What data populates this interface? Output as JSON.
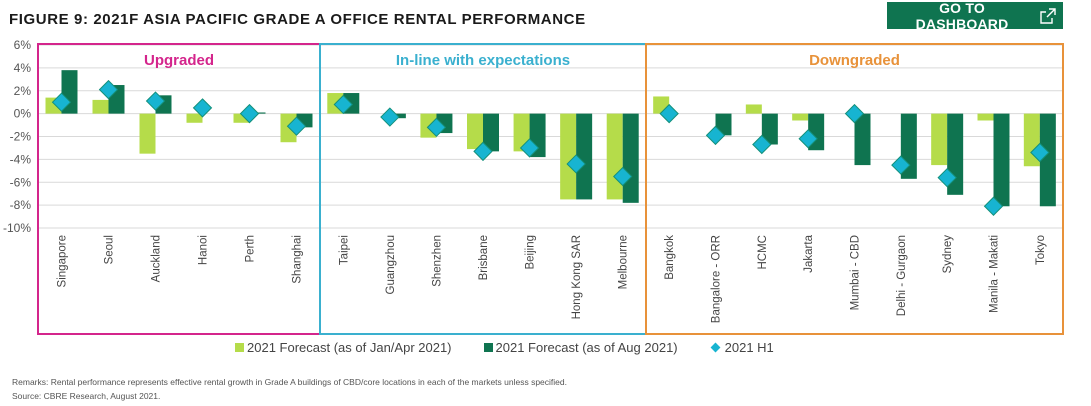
{
  "header": {
    "title": "FIGURE 9: 2021F ASIA PACIFIC GRADE A OFFICE RENTAL PERFORMANCE",
    "dashboard_button": "GO TO DASHBOARD",
    "dashboard_icon": "external-link-icon"
  },
  "colors": {
    "forecast_jan_apr": "#b5dc4a",
    "forecast_aug": "#0f7450",
    "h1": "#17b4d1",
    "h1_border": "#13907a",
    "upgraded": "#d4258c",
    "inline": "#3ab0cf",
    "downgraded": "#e8923a",
    "button_bg": "#0f7450"
  },
  "chart_data": {
    "type": "bar",
    "title": "FIGURE 9: 2021F ASIA PACIFIC GRADE A OFFICE RENTAL PERFORMANCE",
    "xlabel": "",
    "ylabel": "",
    "ylim": [
      -10,
      6
    ],
    "yticks": [
      "6%",
      "4%",
      "2%",
      "0%",
      "-2%",
      "-4%",
      "-6%",
      "-8%",
      "-10%"
    ],
    "ytick_values": [
      6,
      4,
      2,
      0,
      -2,
      -4,
      -6,
      -8,
      -10
    ],
    "grid": true,
    "legend_position": "bottom",
    "groups": [
      {
        "name": "Upgraded",
        "categories": [
          "Singapore",
          "Seoul",
          "Auckland",
          "Hanoi",
          "Perth",
          "Shanghai"
        ]
      },
      {
        "name": "In-line with expectations",
        "categories": [
          "Taipei",
          "Guangzhou",
          "Shenzhen",
          "Brisbane",
          "Beijing",
          "Hong Kong SAR",
          "Melbourne"
        ]
      },
      {
        "name": "Downgraded",
        "categories": [
          "Bangkok",
          "Bangalore - ORR",
          "HCMC",
          "Jakarta",
          "Mumbai - CBD",
          "Delhi - Gurgaon",
          "Sydney",
          "Manila - Makati",
          "Tokyo"
        ]
      }
    ],
    "categories": [
      "Singapore",
      "Seoul",
      "Auckland",
      "Hanoi",
      "Perth",
      "Shanghai",
      "Taipei",
      "Guangzhou",
      "Shenzhen",
      "Brisbane",
      "Beijing",
      "Hong Kong SAR",
      "Melbourne",
      "Bangkok",
      "Bangalore - ORR",
      "HCMC",
      "Jakarta",
      "Mumbai - CBD",
      "Delhi - Gurgaon",
      "Sydney",
      "Manila - Makati",
      "Tokyo"
    ],
    "series": [
      {
        "name": "2021 Forecast (as of Jan/Apr 2021)",
        "kind": "bar",
        "values": [
          1.4,
          1.2,
          -3.5,
          -0.8,
          -0.8,
          -2.5,
          1.8,
          0.0,
          -2.1,
          -3.1,
          -3.3,
          -7.5,
          -7.5,
          1.5,
          0.0,
          0.8,
          -0.6,
          0.0,
          0.0,
          -4.5,
          -0.6,
          -4.6
        ]
      },
      {
        "name": "2021 Forecast (as of Aug 2021)",
        "kind": "bar",
        "values": [
          3.8,
          2.5,
          1.6,
          0.0,
          0.1,
          -1.2,
          1.8,
          -0.4,
          -1.7,
          -3.3,
          -3.8,
          -7.5,
          -7.8,
          0.0,
          -1.9,
          -2.7,
          -3.2,
          -4.5,
          -5.7,
          -7.1,
          -8.1,
          -8.1
        ]
      },
      {
        "name": "2021 H1",
        "kind": "marker",
        "values": [
          1.0,
          2.1,
          1.1,
          0.5,
          0.0,
          -1.1,
          0.8,
          -0.3,
          -1.2,
          -3.3,
          -3.0,
          -4.4,
          -5.5,
          0.0,
          -1.9,
          -2.7,
          -2.2,
          0.0,
          -4.5,
          -5.6,
          -8.1,
          -3.4
        ]
      }
    ]
  },
  "legend": [
    {
      "label": "2021 Forecast (as of Jan/Apr 2021)",
      "icon": "square"
    },
    {
      "label": "2021 Forecast (as of Aug 2021)",
      "icon": "square"
    },
    {
      "label": "2021 H1",
      "icon": "diamond"
    }
  ],
  "footer": {
    "remarks": "Remarks: Rental performance represents effective rental growth in Grade A buildings of CBD/core locations in each of the markets unless specified.",
    "source": "Source: CBRE Research, August 2021."
  }
}
